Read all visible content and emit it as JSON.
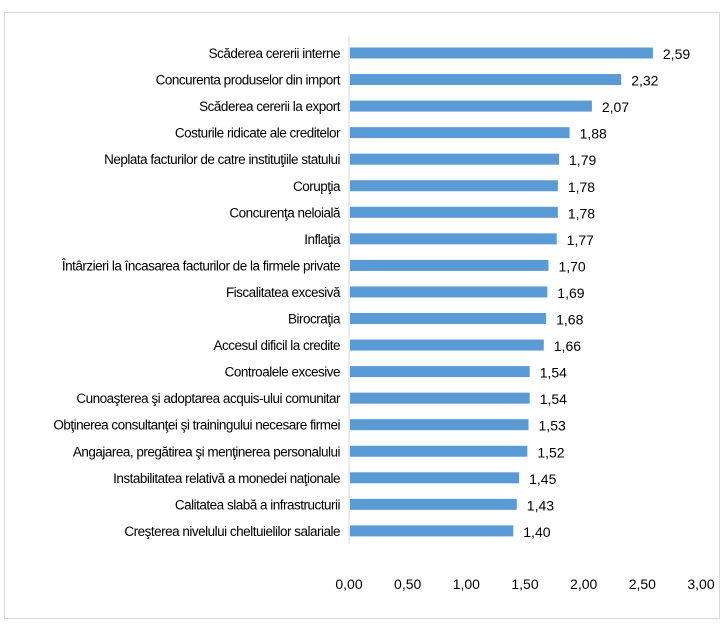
{
  "chart_data": {
    "type": "bar",
    "orientation": "horizontal",
    "title": "",
    "xlabel": "",
    "ylabel": "",
    "xlim": [
      0,
      3
    ],
    "grid": false,
    "legend": "none",
    "bar_color": "#5b9bd5",
    "categories": [
      "Scăderea cererii interne",
      "Concurenta produselor din import",
      "Scăderea cererii la export",
      "Costurile ridicate ale creditelor",
      "Neplata facturilor de catre instituţiile statului",
      "Corupţia",
      "Concurenţa neloială",
      "Inflaţia",
      "Întârzieri la încasarea facturilor de la firmele private",
      "Fiscalitatea excesivă",
      "Birocraţia",
      "Accesul dificil la credite",
      "Controalele excesive",
      "Cunoaşterea şi adoptarea acquis-ului comunitar",
      "Obţinerea consultanţei şi trainingului necesare firmei",
      "Angajarea, pregătirea şi menţinerea personalului",
      "Instabilitatea relativă a monedei naţionale",
      "Calitatea slabă a infrastructurii",
      "Creşterea nivelului cheltuielilor salariale"
    ],
    "values": [
      2.59,
      2.32,
      2.07,
      1.88,
      1.79,
      1.78,
      1.78,
      1.77,
      1.7,
      1.69,
      1.68,
      1.66,
      1.54,
      1.54,
      1.53,
      1.52,
      1.45,
      1.43,
      1.4
    ],
    "value_labels": [
      "2,59",
      "2,32",
      "2,07",
      "1,88",
      "1,79",
      "1,78",
      "1,78",
      "1,77",
      "1,70",
      "1,69",
      "1,68",
      "1,66",
      "1,54",
      "1,54",
      "1,53",
      "1,52",
      "1,45",
      "1,43",
      "1,40"
    ],
    "x_ticks": [
      0,
      0.5,
      1,
      1.5,
      2,
      2.5,
      3
    ],
    "x_tick_labels": [
      "0,00",
      "0,50",
      "1,00",
      "1,50",
      "2,00",
      "2,50",
      "3,00"
    ]
  }
}
